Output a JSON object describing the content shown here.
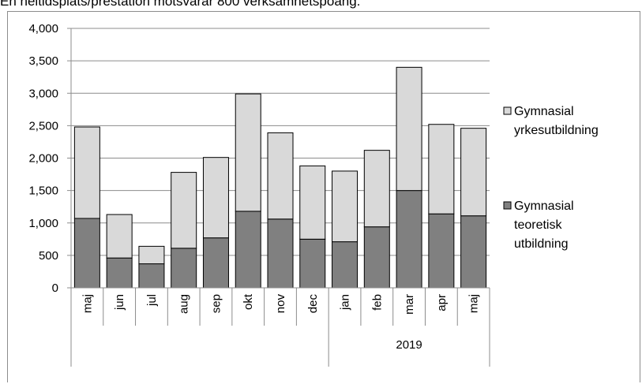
{
  "caption": "En heltidsplats/prestation motsvarar 800 verksamhetspoäng.",
  "chart_data": {
    "type": "bar",
    "stacked": true,
    "title": "",
    "xlabel": "",
    "ylabel": "",
    "ylim": [
      0,
      4000
    ],
    "ytick_step": 500,
    "ytick_labels": [
      "0",
      "500",
      "1,000",
      "1,500",
      "2,000",
      "2,500",
      "3,000",
      "3,500",
      "4,000"
    ],
    "grid": true,
    "legend_position": "right",
    "categories": [
      "maj",
      "jun",
      "jul",
      "aug",
      "sep",
      "okt",
      "nov",
      "dec",
      "jan",
      "feb",
      "mar",
      "apr",
      "maj"
    ],
    "group_labels": [
      {
        "label": "",
        "start": 0,
        "end": 7
      },
      {
        "label": "2019",
        "start": 8,
        "end": 12
      }
    ],
    "series": [
      {
        "name": "Gymnasial teoretisk utbildning",
        "legend_lines": [
          "Gymnasial",
          "teoretisk",
          "utbildning"
        ],
        "color": "#808080",
        "values": [
          1070,
          460,
          370,
          610,
          770,
          1180,
          1060,
          750,
          710,
          940,
          1500,
          1140,
          1110
        ]
      },
      {
        "name": "Gymnasial yrkesutbildning",
        "legend_lines": [
          "Gymnasial",
          "yrkesutbildning"
        ],
        "color": "#d9d9d9",
        "values": [
          1410,
          670,
          270,
          1170,
          1240,
          1810,
          1330,
          1130,
          1090,
          1180,
          1900,
          1380,
          1350
        ]
      }
    ]
  }
}
